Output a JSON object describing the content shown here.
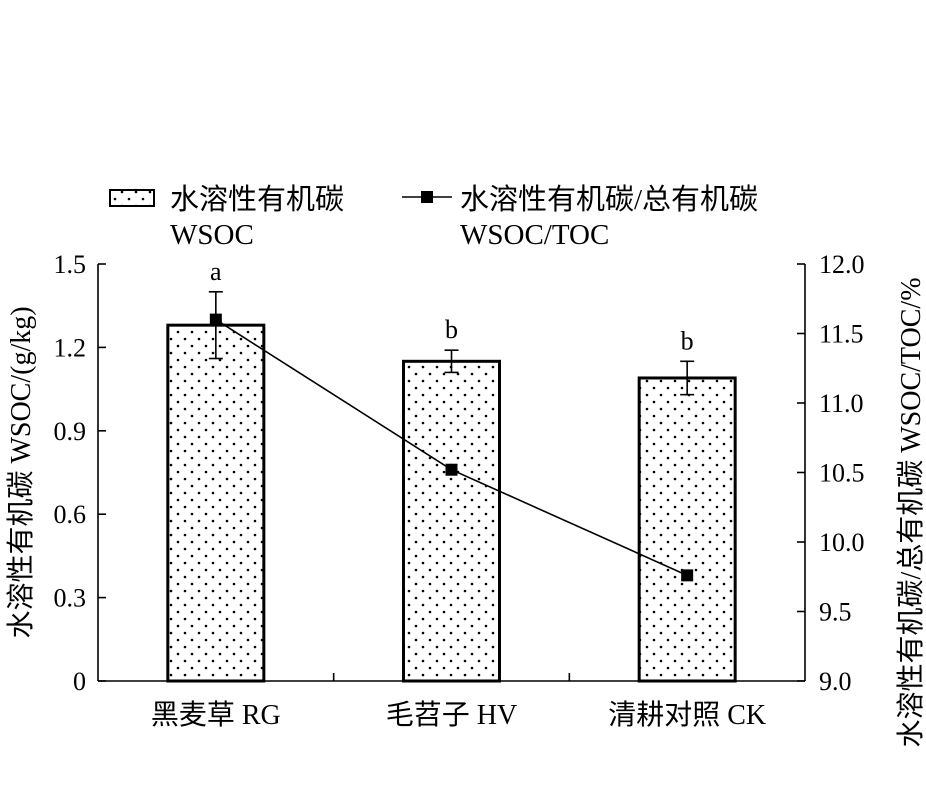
{
  "chart_data": {
    "type": "bar",
    "categories": [
      "黑麦草 RG",
      "毛苕子 HV",
      "清耕对照 CK"
    ],
    "series": [
      {
        "name": "水溶性有机碳 WSOC",
        "type": "bar",
        "axis": "left",
        "values": [
          1.28,
          1.15,
          1.09
        ],
        "error": [
          0.12,
          0.04,
          0.06
        ],
        "significance": [
          "a",
          "b",
          "b"
        ]
      },
      {
        "name": "水溶性有机碳/总有机碳 WSOC/TOC",
        "type": "line",
        "axis": "right",
        "values": [
          11.6,
          10.52,
          9.76
        ]
      }
    ],
    "legend": [
      {
        "line1": "水溶性有机碳",
        "line2": "WSOC"
      },
      {
        "line1": "水溶性有机碳/总有机碳",
        "line2": "WSOC/TOC"
      }
    ],
    "ylabel": "水溶性有机碳 WSOC/(g/kg)",
    "ylabel_right": "水溶性有机碳/总有机碳 WSOC/TOC/%",
    "ylim": [
      0,
      1.5
    ],
    "ylim_right": [
      9.0,
      12.0
    ],
    "yticks": [
      "0",
      "0.3",
      "0.6",
      "0.9",
      "1.2",
      "1.5"
    ],
    "yticks_right": [
      "9.0",
      "9.5",
      "10.0",
      "10.5",
      "11.0",
      "11.5",
      "12.0"
    ],
    "legend_position": "top",
    "grid": false
  }
}
